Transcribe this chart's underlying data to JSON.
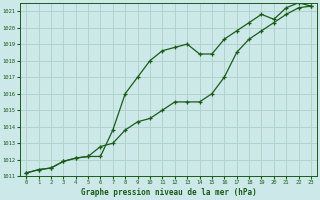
{
  "title": "Graphe pression niveau de la mer (hPa)",
  "background_color": "#cce8e8",
  "grid_color": "#b0d4cc",
  "line_color": "#1a5c1a",
  "xlim": [
    -0.5,
    23.5
  ],
  "ylim": [
    1011,
    1021.5
  ],
  "xticks": [
    0,
    1,
    2,
    3,
    4,
    5,
    6,
    7,
    8,
    9,
    10,
    11,
    12,
    13,
    14,
    15,
    16,
    17,
    18,
    19,
    20,
    21,
    22,
    23
  ],
  "yticks": [
    1011,
    1012,
    1013,
    1014,
    1015,
    1016,
    1017,
    1018,
    1019,
    1020,
    1021
  ],
  "line1_x": [
    0,
    1,
    2,
    3,
    4,
    5,
    6,
    7,
    8,
    9,
    10,
    11,
    12,
    13,
    14,
    15,
    16,
    17,
    18,
    19,
    20,
    21,
    22,
    23
  ],
  "line1_y": [
    1011.2,
    1011.4,
    1011.5,
    1011.9,
    1012.1,
    1012.2,
    1012.8,
    1013.0,
    1013.8,
    1014.3,
    1014.5,
    1015.0,
    1015.5,
    1015.5,
    1015.5,
    1016.0,
    1017.0,
    1018.5,
    1019.3,
    1019.8,
    1020.3,
    1020.8,
    1021.2,
    1021.3
  ],
  "line2_x": [
    0,
    1,
    2,
    3,
    4,
    5,
    6,
    7,
    8,
    9,
    10,
    11,
    12,
    13,
    14,
    15,
    16,
    17,
    18,
    19,
    20,
    21,
    22,
    23
  ],
  "line2_y": [
    1011.2,
    1011.4,
    1011.5,
    1011.9,
    1012.1,
    1012.2,
    1012.2,
    1013.8,
    1016.0,
    1017.0,
    1018.0,
    1018.6,
    1018.8,
    1019.0,
    1018.4,
    1018.4,
    1019.3,
    1019.8,
    1020.3,
    1020.8,
    1020.5,
    1021.2,
    1021.5,
    1021.3
  ]
}
